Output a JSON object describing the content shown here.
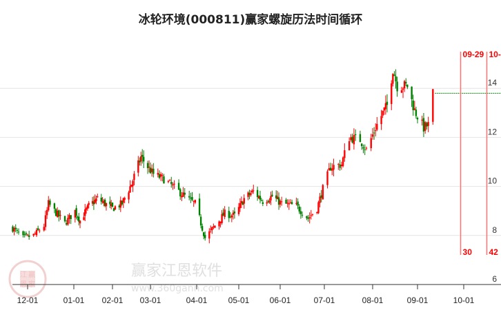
{
  "chart_data": {
    "type": "candlestick",
    "title": "冰轮环境(000811)赢家螺旋历法时间循环",
    "x_tick_labels": [
      "12-01",
      "01-01",
      "02-01",
      "03-01",
      "04-01",
      "05-01",
      "06-01",
      "07-01",
      "08-01",
      "09-01",
      "10-01"
    ],
    "x_tick_dates": [
      "2022-12-01",
      "2023-01-01",
      "2023-02-01",
      "2023-03-01",
      "2023-04-01",
      "2023-05-01",
      "2023-06-01",
      "2023-07-01",
      "2023-08-01",
      "2023-09-01",
      "2023-10-01"
    ],
    "y_tick_labels": [
      "14",
      "12",
      "10",
      "8",
      "6"
    ],
    "ylim": [
      6,
      15.5
    ],
    "grid": true,
    "up_color": "#ff0000",
    "down_color": "#008000",
    "close_path": [
      [
        "2022-11-21",
        8.3
      ],
      [
        "2022-11-28",
        7.9
      ],
      [
        "2022-12-05",
        8.0
      ],
      [
        "2022-12-12",
        8.4
      ],
      [
        "2022-12-15",
        9.3
      ],
      [
        "2022-12-19",
        9.0
      ],
      [
        "2022-12-26",
        8.5
      ],
      [
        "2023-01-02",
        9.0
      ],
      [
        "2023-01-06",
        8.6
      ],
      [
        "2023-01-13",
        9.2
      ],
      [
        "2023-01-20",
        9.5
      ],
      [
        "2023-02-01",
        9.1
      ],
      [
        "2023-02-08",
        9.3
      ],
      [
        "2023-02-15",
        10.1
      ],
      [
        "2023-02-22",
        11.2
      ],
      [
        "2023-02-27",
        10.8
      ],
      [
        "2023-03-03",
        10.5
      ],
      [
        "2023-03-10",
        10.3
      ],
      [
        "2023-03-20",
        9.8
      ],
      [
        "2023-03-28",
        9.4
      ],
      [
        "2023-03-31",
        9.3
      ],
      [
        "2023-04-04",
        8.5
      ],
      [
        "2023-04-07",
        7.9
      ],
      [
        "2023-04-14",
        8.4
      ],
      [
        "2023-04-21",
        8.9
      ],
      [
        "2023-04-28",
        8.8
      ],
      [
        "2023-05-05",
        9.5
      ],
      [
        "2023-05-12",
        9.8
      ],
      [
        "2023-05-19",
        9.4
      ],
      [
        "2023-05-26",
        9.6
      ],
      [
        "2023-06-02",
        9.3
      ],
      [
        "2023-06-12",
        9.2
      ],
      [
        "2023-06-20",
        8.7
      ],
      [
        "2023-06-26",
        9.1
      ],
      [
        "2023-06-30",
        9.9
      ],
      [
        "2023-07-05",
        10.8
      ],
      [
        "2023-07-12",
        10.9
      ],
      [
        "2023-07-17",
        12.0
      ],
      [
        "2023-07-24",
        11.9
      ],
      [
        "2023-07-28",
        11.5
      ],
      [
        "2023-08-03",
        12.4
      ],
      [
        "2023-08-08",
        13.0
      ],
      [
        "2023-08-11",
        13.3
      ],
      [
        "2023-08-15",
        14.8
      ],
      [
        "2023-08-18",
        14.1
      ],
      [
        "2023-08-25",
        14.1
      ],
      [
        "2023-08-30",
        13.1
      ],
      [
        "2023-09-05",
        12.4
      ],
      [
        "2023-09-08",
        12.5
      ],
      [
        "2023-09-11",
        13.8
      ]
    ],
    "last_close_line": {
      "value": 13.8,
      "color": "#008000",
      "style": "dashed"
    },
    "cycle_lines": [
      {
        "date": "2023-09-29",
        "top_label": "09-29",
        "bottom_label": "30"
      },
      {
        "date": "2023-10-16",
        "top_label": "10-",
        "bottom_label": "42"
      }
    ],
    "cycle_color": "#ff0000"
  },
  "watermark": {
    "logo_chars": [
      "江",
      "赢",
      "恩",
      "家"
    ],
    "brand": "赢家江恩软件",
    "url": "www.360gann.com"
  }
}
